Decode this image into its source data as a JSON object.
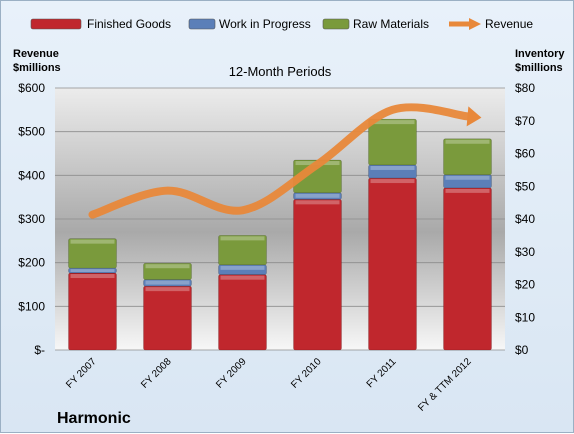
{
  "company": "Harmonic",
  "colors": {
    "finished_goods": "#c0272d",
    "work_in_progress": "#5b7fb8",
    "raw_materials": "#7a9a3c",
    "revenue": "#e8883a"
  },
  "chart_data": {
    "type": "bar",
    "subtype": "stacked-bar-with-line",
    "title": "12-Month Periods",
    "categories": [
      "FY 2007",
      "FY 2008",
      "FY 2009",
      "FY 2010",
      "FY 2011",
      "FY & TTM 2012"
    ],
    "series": [
      {
        "name": "Finished Goods",
        "axis": "right",
        "values": [
          23.5,
          19.5,
          23,
          46,
          52.5,
          49.5
        ]
      },
      {
        "name": "Work in Progress",
        "axis": "right",
        "values": [
          1.5,
          2,
          3,
          2,
          4,
          4
        ]
      },
      {
        "name": "Raw Materials",
        "axis": "right",
        "values": [
          9,
          5,
          9,
          10,
          14,
          11
        ]
      },
      {
        "name": "Revenue",
        "axis": "left",
        "type": "line",
        "values": [
          310,
          365,
          320,
          425,
          550,
          535
        ]
      }
    ],
    "left_axis": {
      "label_line1": "Revenue",
      "label_line2": "$millions",
      "min": 0,
      "max": 600,
      "step": 100,
      "ticks": [
        "$-",
        "$100",
        "$200",
        "$300",
        "$400",
        "$500",
        "$600"
      ]
    },
    "right_axis": {
      "label_line1": "Inventory",
      "label_line2": "$millions",
      "min": 0,
      "max": 80,
      "step": 10,
      "ticks": [
        "$0",
        "$10",
        "$20",
        "$30",
        "$40",
        "$50",
        "$60",
        "$70",
        "$80"
      ]
    },
    "legend_position": "top",
    "grid": true
  }
}
